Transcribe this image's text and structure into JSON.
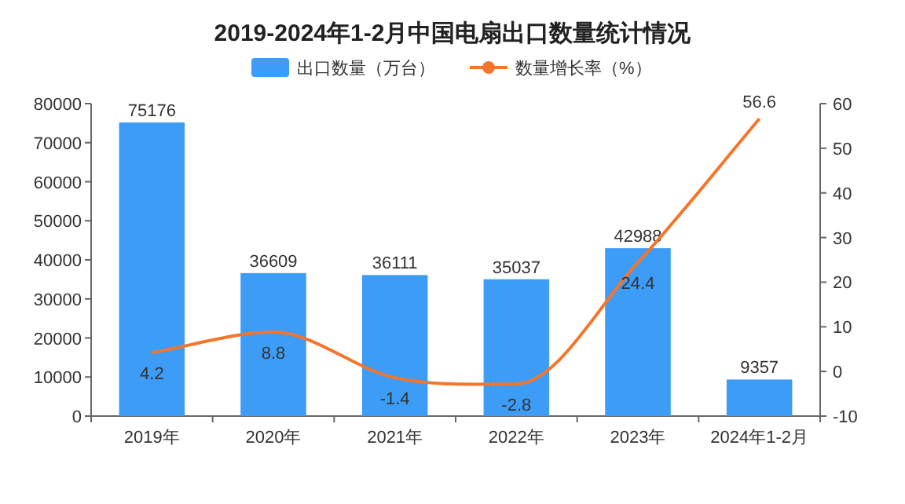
{
  "chart_data": {
    "type": "bar",
    "title": "2019-2024年1-2月中国电扇出口数量统计情况",
    "categories": [
      "2019年",
      "2020年",
      "2021年",
      "2022年",
      "2023年",
      "2024年1-2月"
    ],
    "series": [
      {
        "name": "出口数量（万台）",
        "color": "#3d9cf5",
        "values": [
          75176,
          36609,
          36111,
          35037,
          42988,
          9357
        ]
      },
      {
        "name": "数量增长率（%）",
        "type": "line",
        "axis": "y2",
        "color": "#f5752b",
        "values": [
          4.2,
          8.8,
          -1.4,
          -2.8,
          24.4,
          56.6
        ]
      }
    ],
    "ylim": [
      0,
      80000
    ],
    "yticks": [
      0,
      10000,
      20000,
      30000,
      40000,
      50000,
      60000,
      70000,
      80000
    ],
    "y2lim": [
      -10,
      60
    ],
    "y2ticks": [
      -10,
      0,
      10,
      20,
      30,
      40,
      50,
      60
    ],
    "data_labels": true,
    "legend": "top",
    "grid": false,
    "marker": "none",
    "line_style": "solid"
  }
}
